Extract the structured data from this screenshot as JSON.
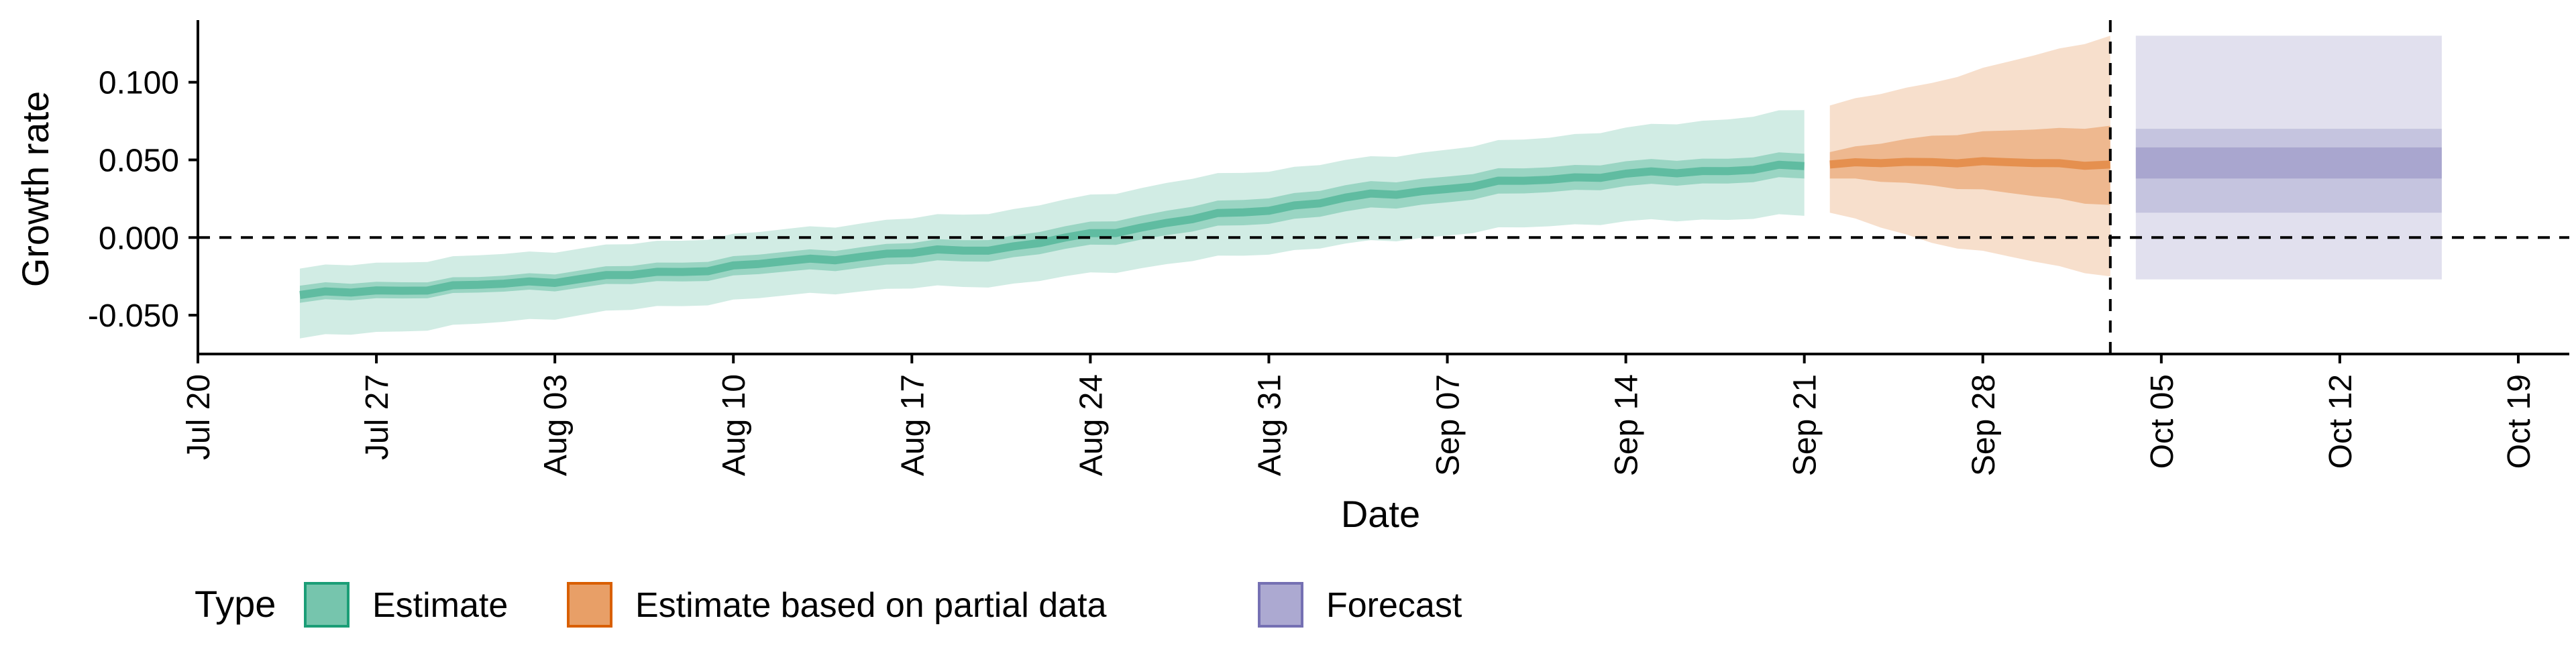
{
  "chart_data": {
    "type": "area",
    "xlabel": "Date",
    "ylabel": "Growth rate",
    "x_ticks": [
      "Jul 20",
      "Jul 27",
      "Aug 03",
      "Aug 10",
      "Aug 17",
      "Aug 24",
      "Aug 31",
      "Sep 07",
      "Sep 14",
      "Sep 21",
      "Sep 28",
      "Oct 05",
      "Oct 12",
      "Oct 19"
    ],
    "y_ticks": [
      "-0.050",
      "0.000",
      "0.050",
      "0.100"
    ],
    "xlim": [
      "2020-07-20",
      "2020-10-21"
    ],
    "ylim": [
      -0.075,
      0.14
    ],
    "reference_lines": {
      "horizontal_y": 0.0,
      "vertical_date": "2020-10-03"
    },
    "legend": {
      "title": "Type",
      "position": "bottom-left",
      "items": [
        "Estimate",
        "Estimate based on partial data",
        "Forecast"
      ]
    },
    "colors": {
      "Estimate": "#1b9e77",
      "Estimate based on partial data": "#d95f02",
      "Forecast": "#7570b3"
    },
    "series": [
      {
        "name": "Estimate",
        "points": [
          {
            "date": "2020-07-24",
            "median": -0.037,
            "lower_50": -0.042,
            "upper_50": -0.031,
            "lower_90": -0.065,
            "upper_90": -0.02
          },
          {
            "date": "2020-07-31",
            "median": -0.031,
            "lower_50": -0.036,
            "upper_50": -0.026,
            "lower_90": -0.056,
            "upper_90": -0.012
          },
          {
            "date": "2020-08-07",
            "median": -0.023,
            "lower_50": -0.029,
            "upper_50": -0.017,
            "lower_90": -0.045,
            "upper_90": -0.003
          },
          {
            "date": "2020-08-14",
            "median": -0.013,
            "lower_50": -0.02,
            "upper_50": -0.007,
            "lower_90": -0.035,
            "upper_90": 0.008
          },
          {
            "date": "2020-08-21",
            "median": -0.006,
            "lower_50": -0.013,
            "upper_50": 0.001,
            "lower_90": -0.03,
            "upper_90": 0.018
          },
          {
            "date": "2020-08-28",
            "median": 0.012,
            "lower_50": 0.004,
            "upper_50": 0.02,
            "lower_90": -0.015,
            "upper_90": 0.038
          },
          {
            "date": "2020-09-04",
            "median": 0.027,
            "lower_50": 0.018,
            "upper_50": 0.035,
            "lower_90": -0.003,
            "upper_90": 0.051
          },
          {
            "date": "2020-09-11",
            "median": 0.038,
            "lower_50": 0.03,
            "upper_50": 0.046,
            "lower_90": 0.008,
            "upper_90": 0.065
          },
          {
            "date": "2020-09-21",
            "median": 0.046,
            "lower_50": 0.038,
            "upper_50": 0.054,
            "lower_90": 0.014,
            "upper_90": 0.082
          }
        ]
      },
      {
        "name": "Estimate based on partial data",
        "points": [
          {
            "date": "2020-09-22",
            "median": 0.047,
            "lower_50": 0.038,
            "upper_50": 0.055,
            "lower_90": 0.016,
            "upper_90": 0.085
          },
          {
            "date": "2020-09-26",
            "median": 0.049,
            "lower_50": 0.034,
            "upper_50": 0.066,
            "lower_90": -0.003,
            "upper_90": 0.1
          },
          {
            "date": "2020-10-03",
            "median": 0.047,
            "lower_50": 0.021,
            "upper_50": 0.072,
            "lower_90": -0.025,
            "upper_90": 0.13
          }
        ]
      },
      {
        "name": "Forecast",
        "points": [
          {
            "date": "2020-10-04",
            "median": 0.047,
            "lower_50": 0.038,
            "upper_50": 0.058,
            "lower_50_outer": 0.016,
            "upper_50_outer": 0.07,
            "lower_90": -0.027,
            "upper_90": 0.13
          },
          {
            "date": "2020-10-16",
            "median": 0.047,
            "lower_50": 0.038,
            "upper_50": 0.058,
            "lower_50_outer": 0.016,
            "upper_50_outer": 0.07,
            "lower_90": -0.027,
            "upper_90": 0.13
          }
        ]
      }
    ]
  }
}
